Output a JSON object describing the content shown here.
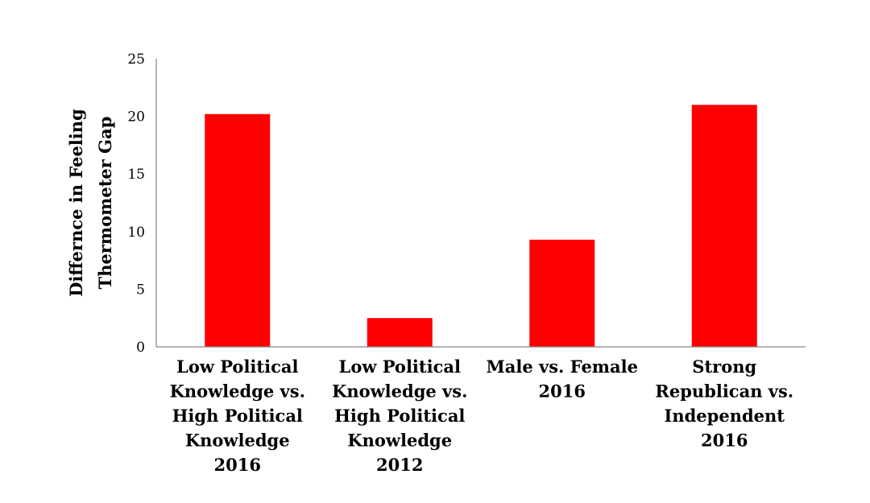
{
  "chart_data": {
    "type": "bar",
    "categories": [
      [
        "Low Political",
        "Knowledge vs.",
        "High Political",
        "Knowledge",
        "2016"
      ],
      [
        "Low Political",
        "Knowledge vs.",
        "High Political",
        "Knowledge",
        "2012"
      ],
      [
        "Male vs. Female",
        "2016"
      ],
      [
        "Strong",
        "Republican vs.",
        "Independent",
        "2016"
      ]
    ],
    "values": [
      20.2,
      2.5,
      9.3,
      21.0
    ],
    "ylabel": [
      "Differnce in Feeling",
      "Thermometer Gap"
    ],
    "ylim": [
      0,
      25
    ],
    "yticks": [
      0,
      5,
      10,
      15,
      20,
      25
    ],
    "grid": false,
    "legend": false,
    "colors": {
      "bar": "#ff0000",
      "axis": "#868686"
    }
  }
}
